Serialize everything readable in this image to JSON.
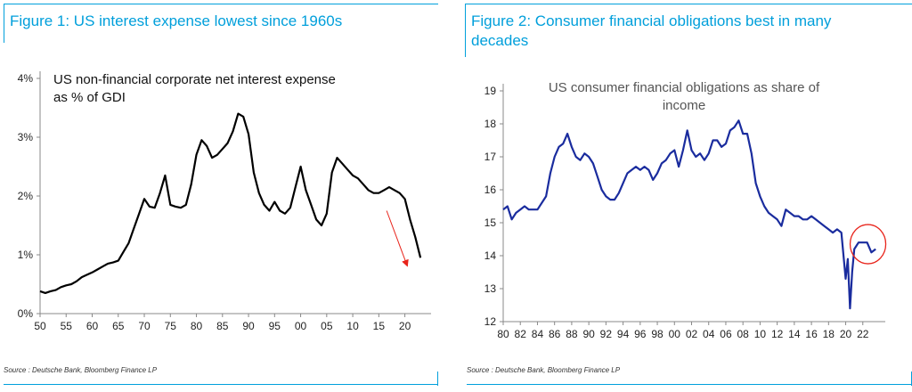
{
  "figure1": {
    "title": "Figure 1: US interest expense lowest since 1960s",
    "source": "Source : Deutsche Bank, Bloomberg Finance LP"
  },
  "figure2": {
    "title_line1": "Figure 2: Consumer financial obligations best in many",
    "title_line2": "decades",
    "source": "Source : Deutsche Bank, Bloomberg Finance LP"
  },
  "colors": {
    "accent": "#00a0dc",
    "series1": "#000000",
    "series2": "#1a2c9e",
    "highlight": "#e8231a"
  },
  "chart_data": [
    {
      "type": "line",
      "title_lines": [
        "US non-financial corporate net interest expense",
        "as % of GDI"
      ],
      "xlabel": "",
      "ylabel": "",
      "xlim": [
        1950,
        2024
      ],
      "ylim": [
        0,
        4
      ],
      "x_ticks": [
        1950,
        1955,
        1960,
        1965,
        1970,
        1975,
        1980,
        1985,
        1990,
        1995,
        2000,
        2005,
        2010,
        2015,
        2020
      ],
      "x_tick_labels": [
        "50",
        "55",
        "60",
        "65",
        "70",
        "75",
        "80",
        "85",
        "90",
        "95",
        "00",
        "05",
        "10",
        "15",
        "20"
      ],
      "y_ticks": [
        0,
        1,
        2,
        3,
        4
      ],
      "y_tick_labels": [
        "0%",
        "1%",
        "2%",
        "3%",
        "4%"
      ],
      "grid": false,
      "series": [
        {
          "x": [
            1950,
            1951,
            1952,
            1953,
            1954,
            1955,
            1956,
            1957,
            1958,
            1959,
            1960,
            1961,
            1962,
            1963,
            1964,
            1965,
            1966,
            1967,
            1968,
            1969,
            1970,
            1971,
            1972,
            1973,
            1974,
            1975,
            1976,
            1977,
            1978,
            1979,
            1980,
            1981,
            1982,
            1983,
            1984,
            1985,
            1986,
            1987,
            1988,
            1989,
            1990,
            1991,
            1992,
            1993,
            1994,
            1995,
            1996,
            1997,
            1998,
            1999,
            2000,
            2001,
            2002,
            2003,
            2004,
            2005,
            2006,
            2007,
            2008,
            2009,
            2010,
            2011,
            2012,
            2013,
            2014,
            2015,
            2016,
            2017,
            2018,
            2019,
            2020,
            2021,
            2022,
            2023
          ],
          "values": [
            0.38,
            0.35,
            0.38,
            0.4,
            0.45,
            0.48,
            0.5,
            0.55,
            0.62,
            0.66,
            0.7,
            0.75,
            0.8,
            0.85,
            0.87,
            0.9,
            1.05,
            1.2,
            1.45,
            1.7,
            1.95,
            1.82,
            1.8,
            2.05,
            2.35,
            1.85,
            1.82,
            1.8,
            1.85,
            2.2,
            2.7,
            2.95,
            2.85,
            2.65,
            2.7,
            2.8,
            2.9,
            3.1,
            3.4,
            3.35,
            3.05,
            2.4,
            2.05,
            1.85,
            1.75,
            1.9,
            1.75,
            1.7,
            1.8,
            2.15,
            2.5,
            2.1,
            1.85,
            1.6,
            1.5,
            1.7,
            2.4,
            2.65,
            2.55,
            2.45,
            2.35,
            2.3,
            2.2,
            2.1,
            2.05,
            2.05,
            2.1,
            2.15,
            2.1,
            2.05,
            1.95,
            1.6,
            1.3,
            0.95
          ]
        }
      ],
      "annotation": "downward-arrow"
    },
    {
      "type": "line",
      "title_lines": [
        "US consumer financial obligations as share of",
        "income"
      ],
      "xlabel": "",
      "ylabel": "",
      "xlim": [
        1980,
        2024
      ],
      "ylim": [
        12,
        19
      ],
      "x_ticks": [
        1980,
        1982,
        1984,
        1986,
        1988,
        1990,
        1992,
        1994,
        1996,
        1998,
        2000,
        2002,
        2004,
        2006,
        2008,
        2010,
        2012,
        2014,
        2016,
        2018,
        2020,
        2022
      ],
      "x_tick_labels": [
        "80",
        "82",
        "84",
        "86",
        "88",
        "90",
        "92",
        "94",
        "96",
        "98",
        "00",
        "02",
        "04",
        "06",
        "08",
        "10",
        "12",
        "14",
        "16",
        "18",
        "20",
        "22"
      ],
      "y_ticks": [
        12,
        13,
        14,
        15,
        16,
        17,
        18,
        19
      ],
      "y_tick_labels": [
        "12",
        "13",
        "14",
        "15",
        "16",
        "17",
        "18",
        "19"
      ],
      "grid": false,
      "series": [
        {
          "x": [
            1980,
            1980.5,
            1981,
            1981.5,
            1982,
            1982.5,
            1983,
            1984,
            1985,
            1985.5,
            1986,
            1986.5,
            1987,
            1987.5,
            1988,
            1988.5,
            1989,
            1989.5,
            1990,
            1990.5,
            1991,
            1991.5,
            1992,
            1992.5,
            1993,
            1993.5,
            1994,
            1994.5,
            1995,
            1995.5,
            1996,
            1996.5,
            1997,
            1997.5,
            1998,
            1998.5,
            1999,
            1999.5,
            2000,
            2000.5,
            2001,
            2001.5,
            2002,
            2002.5,
            2003,
            2003.5,
            2004,
            2004.5,
            2005,
            2005.5,
            2006,
            2006.5,
            2007,
            2007.5,
            2008,
            2008.5,
            2009,
            2009.5,
            2010,
            2010.5,
            2011,
            2011.5,
            2012,
            2012.5,
            2013,
            2013.5,
            2014,
            2014.5,
            2015,
            2015.5,
            2016,
            2016.5,
            2017,
            2017.5,
            2018,
            2018.5,
            2019,
            2019.5,
            2020,
            2020.25,
            2020.5,
            2020.75,
            2021,
            2021.25,
            2021.5,
            2022,
            2022.5,
            2023,
            2023.5
          ],
          "values": [
            15.4,
            15.5,
            15.1,
            15.3,
            15.4,
            15.5,
            15.4,
            15.4,
            15.8,
            16.5,
            17.0,
            17.3,
            17.4,
            17.7,
            17.3,
            17.0,
            16.9,
            17.1,
            17.0,
            16.8,
            16.4,
            16.0,
            15.8,
            15.7,
            15.7,
            15.9,
            16.2,
            16.5,
            16.6,
            16.7,
            16.6,
            16.7,
            16.6,
            16.3,
            16.5,
            16.8,
            16.9,
            17.1,
            17.2,
            16.7,
            17.2,
            17.8,
            17.2,
            17.0,
            17.1,
            16.9,
            17.1,
            17.5,
            17.5,
            17.3,
            17.4,
            17.8,
            17.9,
            18.1,
            17.7,
            17.7,
            17.1,
            16.2,
            15.8,
            15.5,
            15.3,
            15.2,
            15.1,
            14.9,
            15.4,
            15.3,
            15.2,
            15.2,
            15.1,
            15.1,
            15.2,
            15.1,
            15.0,
            14.9,
            14.8,
            14.7,
            14.8,
            14.7,
            13.3,
            13.9,
            12.4,
            13.5,
            14.2,
            14.3,
            14.4,
            14.4,
            14.4,
            14.1,
            14.2
          ]
        }
      ],
      "annotation": "red-circle-2022"
    }
  ]
}
